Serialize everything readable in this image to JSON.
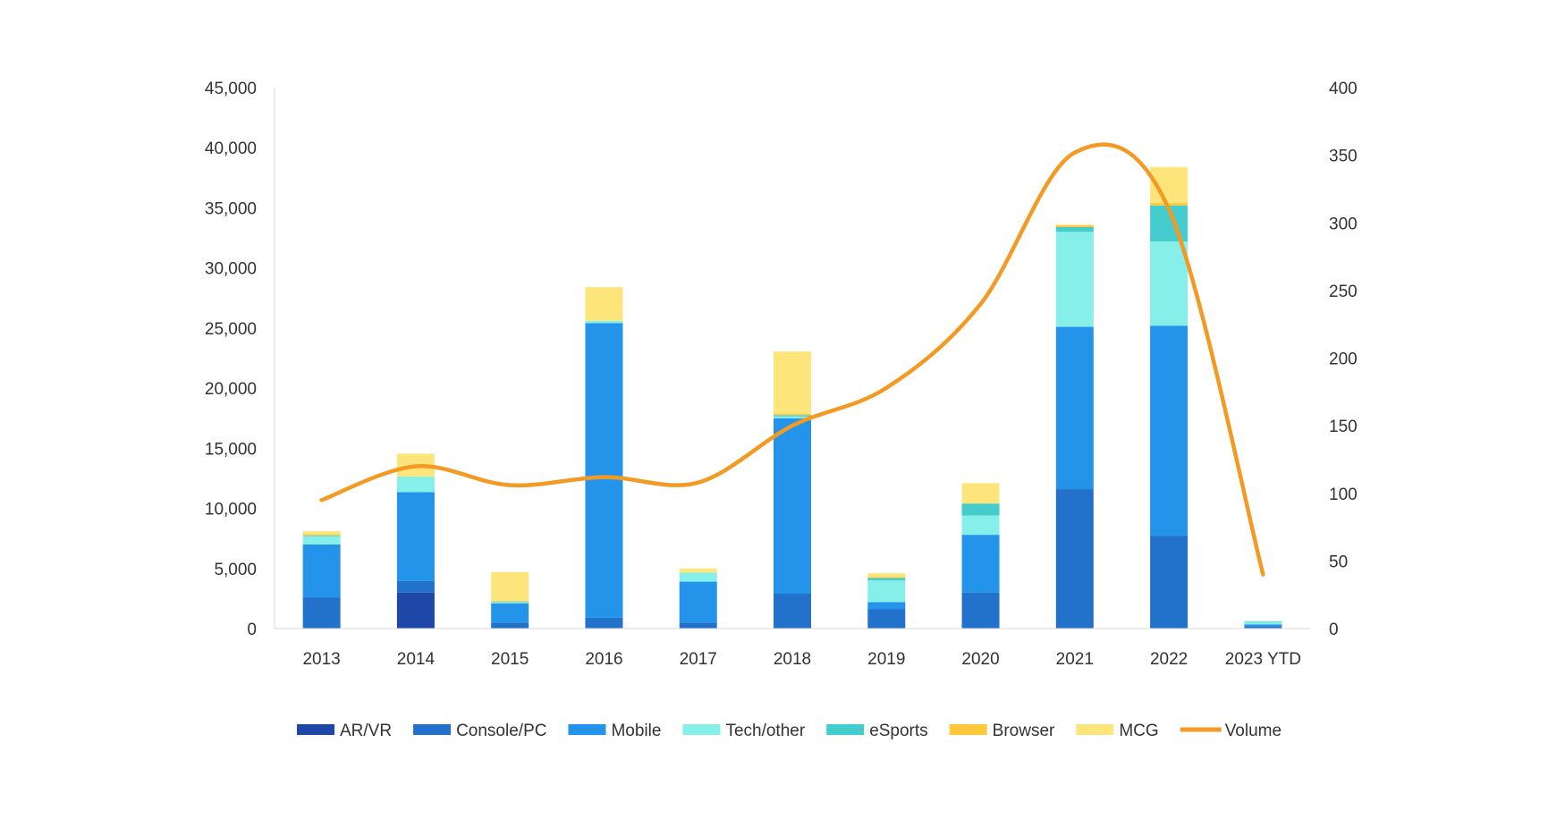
{
  "chart_data": {
    "type": "bar",
    "stacked": true,
    "categories": [
      "2013",
      "2014",
      "2015",
      "2016",
      "2017",
      "2018",
      "2019",
      "2020",
      "2021",
      "2022",
      "2023 YTD"
    ],
    "series": [
      {
        "name": "AR/VR",
        "color": "#1f47a8",
        "values": [
          0,
          3000,
          0,
          0,
          0,
          0,
          0,
          0,
          0,
          0,
          0
        ]
      },
      {
        "name": "Console/PC",
        "color": "#2272cc",
        "values": [
          2600,
          950,
          500,
          900,
          500,
          2900,
          1600,
          3000,
          11600,
          7700,
          200
        ]
      },
      {
        "name": "Mobile",
        "color": "#2493ea",
        "values": [
          4400,
          7400,
          1600,
          24500,
          3400,
          14600,
          600,
          4800,
          13500,
          17500,
          150
        ]
      },
      {
        "name": "Tech/other",
        "color": "#86efea",
        "values": [
          700,
          1300,
          100,
          200,
          750,
          150,
          1800,
          1600,
          7900,
          7000,
          200
        ]
      },
      {
        "name": "eSports",
        "color": "#45cdcd",
        "values": [
          50,
          0,
          50,
          0,
          0,
          100,
          200,
          1000,
          400,
          3000,
          50
        ]
      },
      {
        "name": "Browser",
        "color": "#ffc83a",
        "values": [
          100,
          0,
          50,
          0,
          0,
          100,
          100,
          0,
          150,
          200,
          0
        ]
      },
      {
        "name": "MCG",
        "color": "#fde57c",
        "values": [
          250,
          1900,
          2400,
          2800,
          350,
          5200,
          300,
          1700,
          50,
          3000,
          0
        ]
      }
    ],
    "line_series": {
      "name": "Volume",
      "color": "#f39a24",
      "axis": "right",
      "values": [
        95,
        120,
        106,
        112,
        108,
        150,
        178,
        240,
        352,
        310,
        40
      ]
    },
    "ylim": [
      0,
      45000
    ],
    "yticks": [
      "0",
      "5,000",
      "10,000",
      "15,000",
      "20,000",
      "25,000",
      "30,000",
      "35,000",
      "40,000",
      "45,000"
    ],
    "ylim_right": [
      0,
      400
    ],
    "yticks_right": [
      "0",
      "50",
      "100",
      "150",
      "200",
      "250",
      "300",
      "350",
      "400"
    ],
    "grid": false,
    "legend_position": "bottom"
  }
}
